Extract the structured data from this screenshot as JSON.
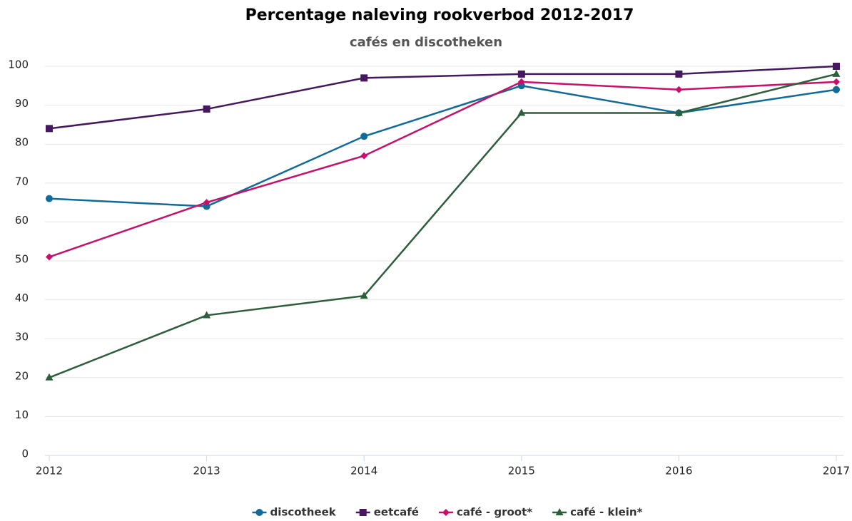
{
  "chart_data": {
    "type": "line",
    "title": "Percentage naleving rookverbod 2012-2017",
    "subtitle": "cafés en discotheken",
    "x": [
      2012,
      2013,
      2014,
      2015,
      2016,
      2017
    ],
    "xlim": [
      2012,
      2017
    ],
    "xticks": [
      2012,
      2013,
      2014,
      2015,
      2016,
      2017
    ],
    "ylim": [
      0,
      100
    ],
    "yticks": [
      0,
      10,
      20,
      30,
      40,
      50,
      60,
      70,
      80,
      90,
      100
    ],
    "grid": true,
    "legend": "bottom",
    "series": [
      {
        "name": "discotheek",
        "color": "#106b9a",
        "marker": "circle",
        "values": [
          66,
          64,
          82,
          95,
          88,
          94
        ]
      },
      {
        "name": "eetcafé",
        "color": "#45185f",
        "marker": "square",
        "values": [
          84,
          89,
          97,
          98,
          98,
          100
        ]
      },
      {
        "name": "café - groot*",
        "color": "#c8106a",
        "marker": "diamond",
        "values": [
          51,
          65,
          77,
          96,
          94,
          96
        ]
      },
      {
        "name": "café - klein*",
        "color": "#2e5e3c",
        "marker": "triangle",
        "values": [
          20,
          36,
          41,
          88,
          88,
          98
        ]
      }
    ]
  }
}
